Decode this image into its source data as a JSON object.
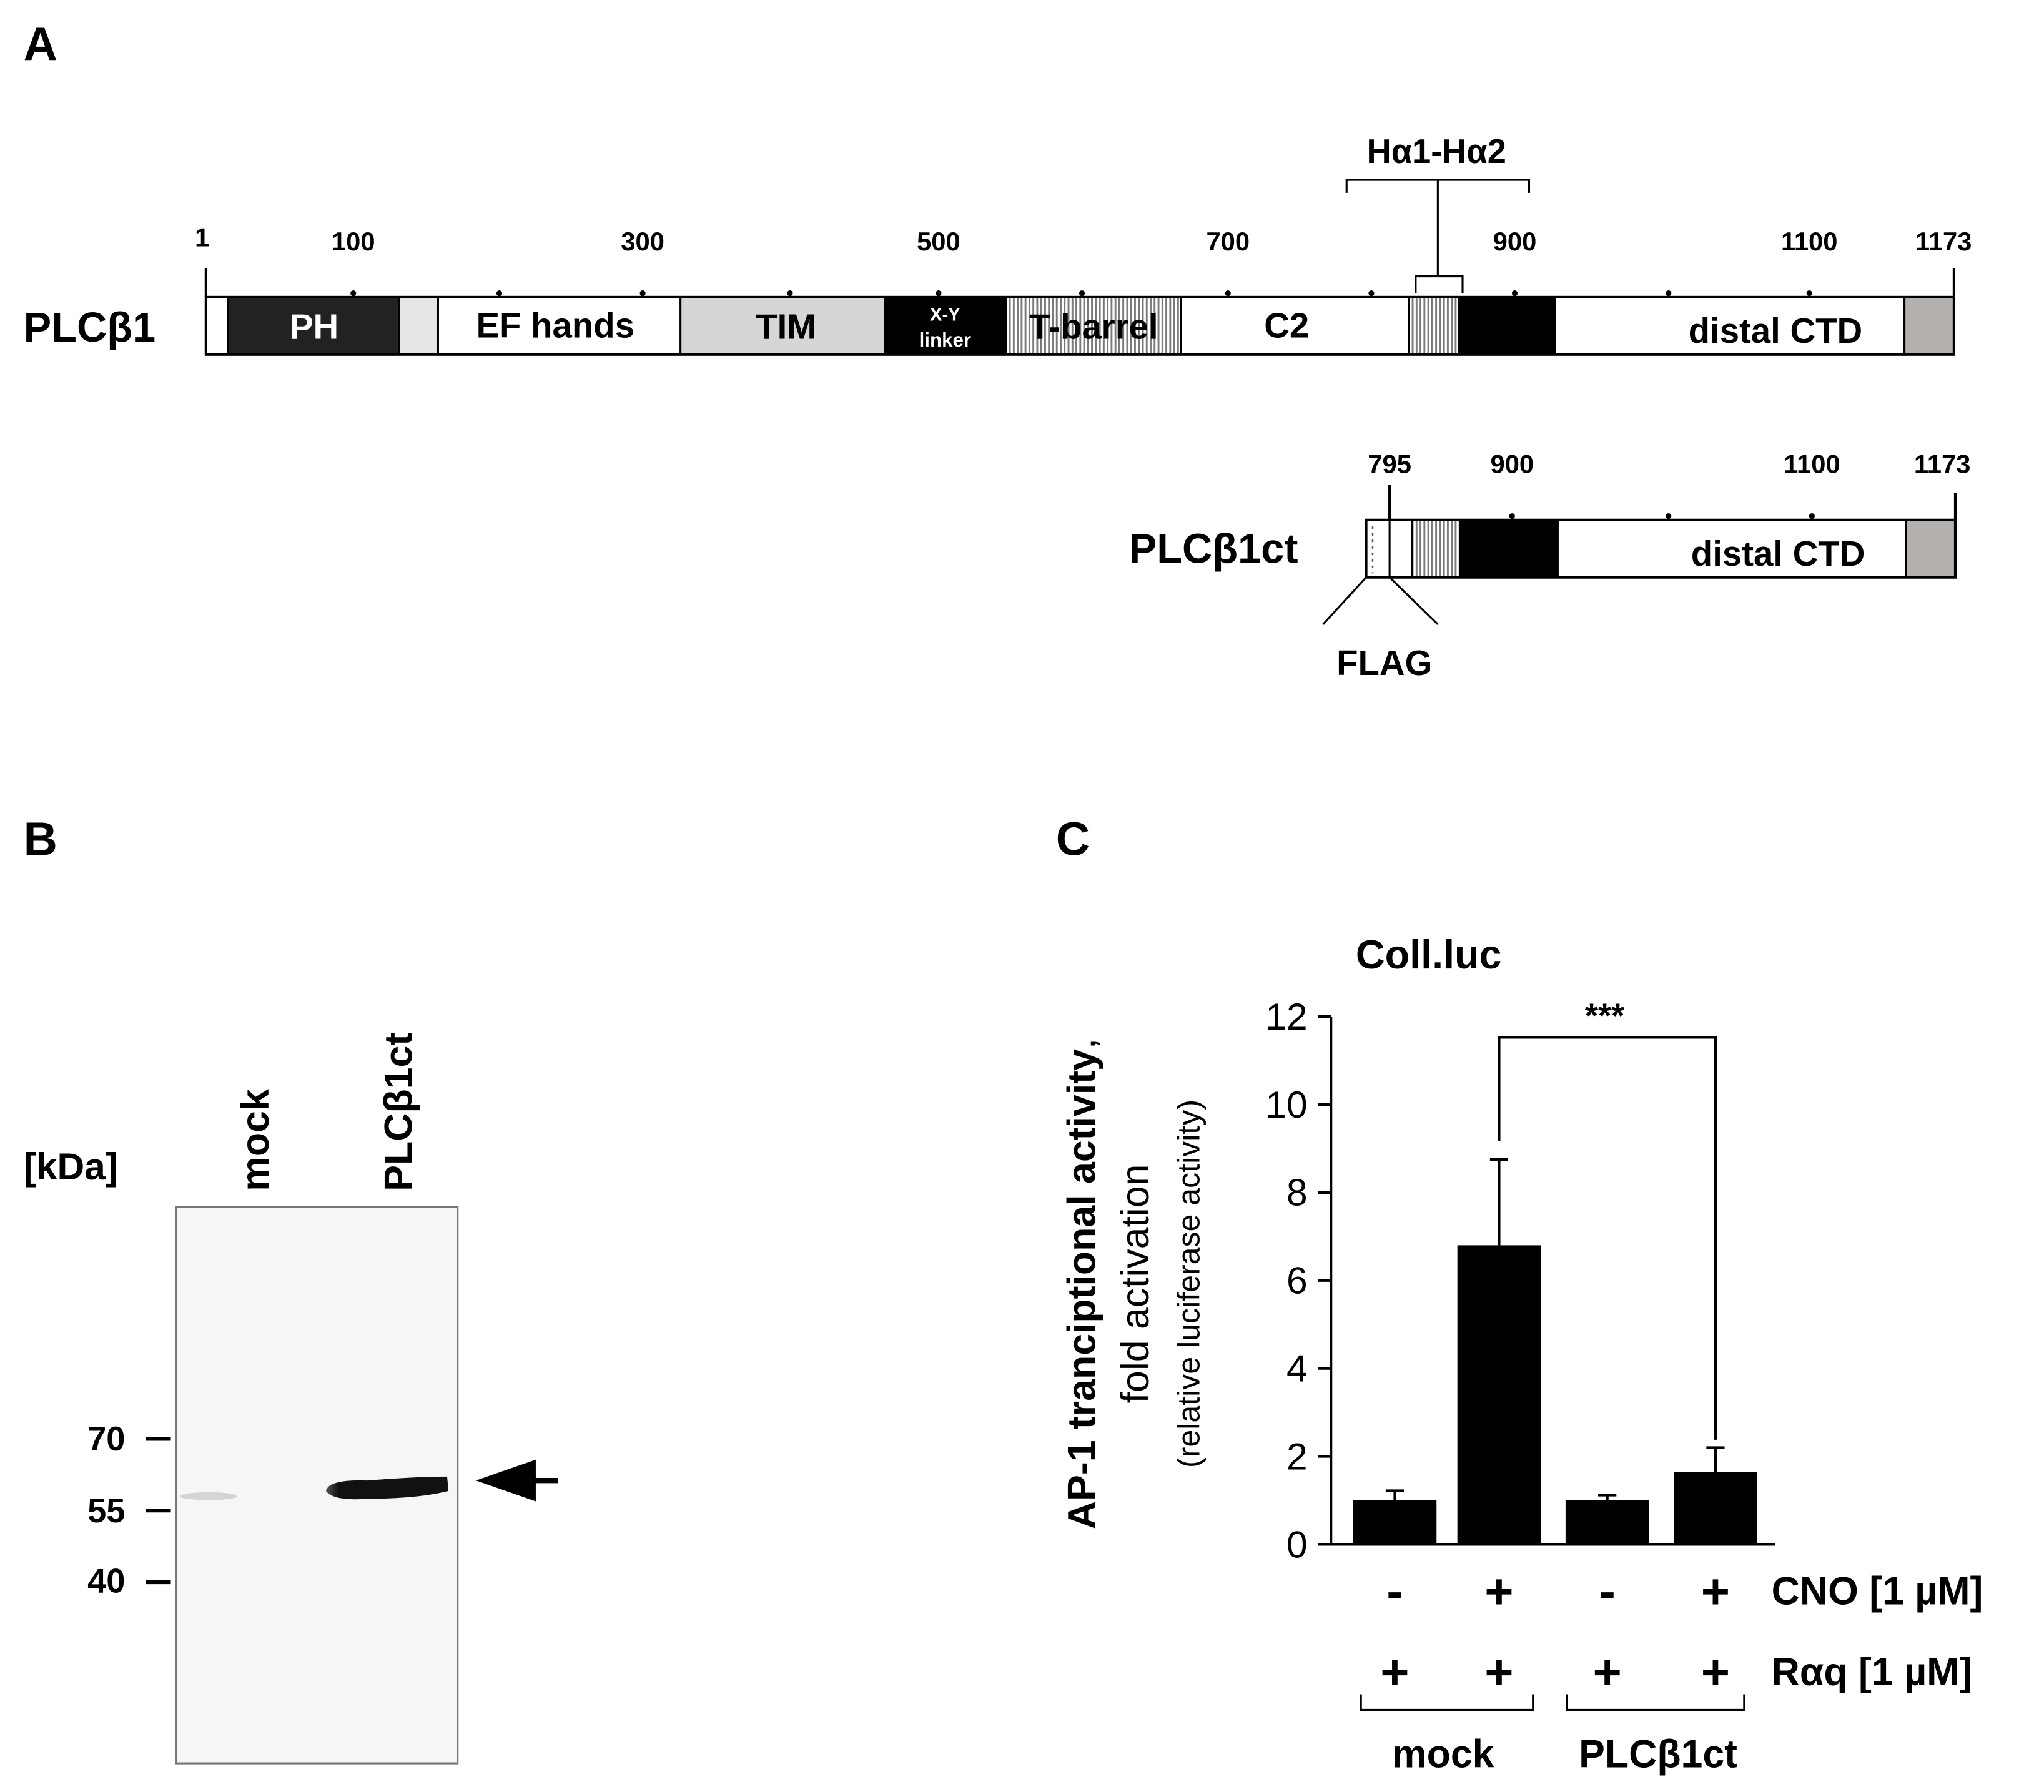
{
  "panel_a": {
    "letter": "A",
    "full": {
      "name": "PLCβ1",
      "numbers": [
        "1",
        "100",
        "300",
        "500",
        "700",
        "900",
        "1100",
        "1173"
      ],
      "helix_label": "Hα1-Hα2",
      "domains": {
        "ph": "PH",
        "ef": "EF hands",
        "tim": "TIM",
        "xy_top": "X-Y",
        "xy_bottom": "linker",
        "tbarrel": "T-barrel",
        "c2": "C2",
        "ctd": "distal CTD"
      }
    },
    "ct": {
      "name": "PLCβ1ct",
      "numbers": [
        "795",
        "900",
        "1100",
        "1173"
      ],
      "ctd": "distal CTD",
      "flag": "FLAG"
    }
  },
  "panel_b": {
    "letter": "B",
    "kda": "[kDa]",
    "lanes": [
      "mock",
      "PLCβ1ct"
    ],
    "markers": [
      "70",
      "55",
      "40"
    ]
  },
  "panel_c": {
    "letter": "C",
    "chart_data": {
      "type": "bar",
      "title": "Coll.luc",
      "ylabel_bold": "AP-1 tranciptional activity",
      "ylabel_comma": ",",
      "ylabel_line2": "fold activation",
      "ylabel_line3": "(relative luciferase activity)",
      "ylim": [
        0,
        12
      ],
      "yticks": [
        "0",
        "2",
        "4",
        "6",
        "8",
        "10",
        "12"
      ],
      "values": [
        1.0,
        6.8,
        1.0,
        1.65
      ],
      "errors": [
        0.22,
        1.95,
        0.12,
        0.55
      ],
      "significance": "***",
      "cno_label": "CNO [1 µM]",
      "cno_signs": [
        "-",
        "+",
        "-",
        "+"
      ],
      "raq_label": "Rαq [1 µM]",
      "raq_signs": [
        "+",
        "+",
        "+",
        "+"
      ],
      "groups": [
        "mock",
        "PLCβ1ct"
      ]
    }
  }
}
